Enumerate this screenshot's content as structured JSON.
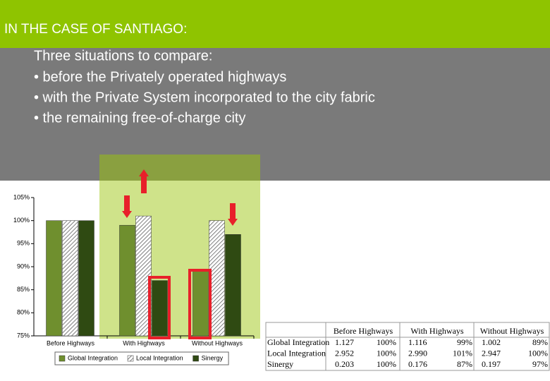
{
  "header": {
    "title": "IN THE CASE OF SANTIAGO:"
  },
  "bullets": [
    "Three situations to compare:",
    "• before the Privately operated highways",
    "• with the Private System incorporated to the city fabric",
    "• the remaining free-of-charge city"
  ],
  "chart_data": {
    "type": "bar",
    "categories": [
      "Before Highways",
      "With Highways",
      "Without Highways"
    ],
    "series": [
      {
        "name": "Global Integration",
        "color": "#6f8f2e",
        "values": [
          100,
          99,
          89
        ]
      },
      {
        "name": "Local Integration",
        "color": "#c9d99a",
        "values": [
          100,
          101,
          100
        ]
      },
      {
        "name": "Sinergy",
        "color": "#2f4a12",
        "values": [
          100,
          87,
          97
        ]
      }
    ],
    "ylim": [
      75,
      105
    ],
    "yticks": [
      {
        "value": 75,
        "label": "75%"
      },
      {
        "value": 80,
        "label": "80%"
      },
      {
        "value": 85,
        "label": "85%"
      },
      {
        "value": 90,
        "label": "90%"
      },
      {
        "value": 95,
        "label": "95%"
      },
      {
        "value": 100,
        "label": "100%"
      },
      {
        "value": 105,
        "label": "105%"
      }
    ],
    "legend": "bottom"
  },
  "table": {
    "header": [
      "Before Highways",
      "With Highways",
      "Without Highways"
    ],
    "rows": [
      [
        "Global Integration",
        "1.127",
        "100%",
        "1.116",
        "99%",
        "1.002",
        "89%"
      ],
      [
        "Local Integration",
        "2.952",
        "100%",
        "2.990",
        "101%",
        "2.947",
        "100%"
      ],
      [
        "Sinergy",
        "0.203",
        "100%",
        "0.176",
        "87%",
        "0.197",
        "97%"
      ]
    ]
  }
}
